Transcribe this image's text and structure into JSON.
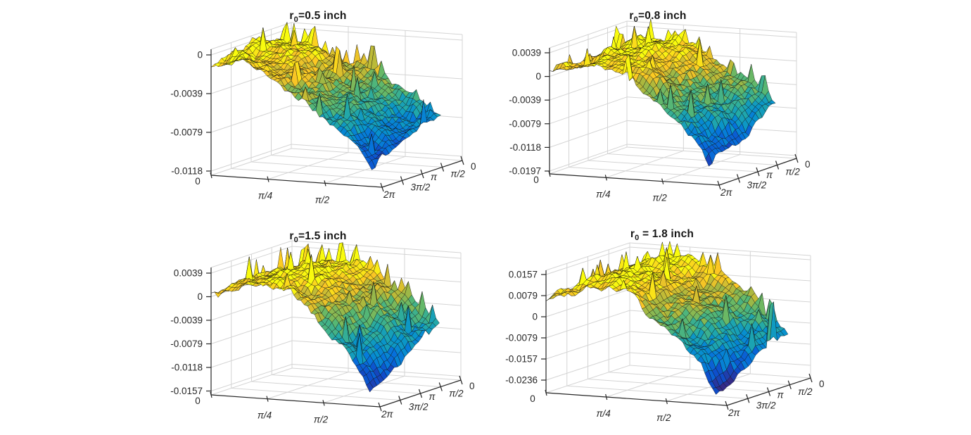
{
  "figure": {
    "background": "#ffffff",
    "colors": {
      "axis": "#262626",
      "grid": "#d4d4d4",
      "tick_text": "#262626",
      "mesh_edge": "#101010"
    },
    "colormap": "parula"
  },
  "chart_data": [
    {
      "type": "surface3d",
      "title": {
        "var": "r",
        "sub": "0",
        "rest": "=0.5 inch"
      },
      "x_ticks": [
        "0",
        "π/4",
        "π/2"
      ],
      "y_ticks": [
        "2π",
        "3π/2",
        "π",
        "π/2",
        "0"
      ],
      "z_ticks": [
        "0",
        "-0.0039",
        "-0.0079",
        "-0.0118"
      ],
      "x_range": [
        0,
        2.356
      ],
      "y_range": [
        0,
        6.283
      ],
      "z_lim": [
        -0.0123,
        0.0006
      ],
      "legend": "none",
      "grid": true,
      "surface": {
        "description": "rough parula mesh falling from z≈0 at left edge to z≈-0.011 at front-right corner",
        "base": 0.93,
        "slope": -0.15,
        "curve": 0.62,
        "v_tilt": 0.3,
        "bump": 0,
        "bump_u": 0.3,
        "bump_w": 0.2,
        "seed": 7,
        "right_edge_spike": false
      }
    },
    {
      "type": "surface3d",
      "title": {
        "var": "r",
        "sub": "0",
        "rest": "=0.8 inch"
      },
      "x_ticks": [
        "0",
        "π/4",
        "π/2"
      ],
      "y_ticks": [
        "2π",
        "3π/2",
        "π",
        "π/2",
        "0"
      ],
      "z_ticks": [
        "0.0039",
        "0",
        "-0.0039",
        "-0.0079",
        "-0.0118",
        "-0.0197"
      ],
      "x_range": [
        0,
        2.356
      ],
      "y_range": [
        0,
        6.283
      ],
      "z_lim": [
        -0.0197,
        0.0045
      ],
      "legend": "none",
      "grid": true,
      "surface": {
        "description": "yellow plateau near z≈0 then steep drop to z≈-0.015 at front-right",
        "base": 0.8,
        "slope": 0.62,
        "curve": 1.28,
        "v_tilt": 0.22,
        "bump": 0.05,
        "bump_u": 0.38,
        "bump_w": 0.22,
        "seed": 13,
        "right_edge_spike": false
      }
    },
    {
      "type": "surface3d",
      "title": {
        "var": "r",
        "sub": "0",
        "rest": "=1.5 inch"
      },
      "x_ticks": [
        "0",
        "π/4",
        "π/2"
      ],
      "y_ticks": [
        "2π",
        "3π/2",
        "π",
        "π/2",
        "0"
      ],
      "z_ticks": [
        "0.0039",
        "0",
        "-0.0039",
        "-0.0079",
        "-0.0118",
        "-0.0157"
      ],
      "x_range": [
        0,
        2.356
      ],
      "y_range": [
        0,
        6.283
      ],
      "z_lim": [
        -0.0157,
        0.0045
      ],
      "legend": "none",
      "grid": true,
      "surface": {
        "description": "broad band: slight rise above 0 then descent to z≈-0.014 at front-right, small hook at right tip",
        "base": 0.78,
        "slope": 0.66,
        "curve": 1.3,
        "v_tilt": 0.24,
        "bump": 0.05,
        "bump_u": 0.35,
        "bump_w": 0.24,
        "seed": 21,
        "right_edge_spike": false
      }
    },
    {
      "type": "surface3d",
      "title": {
        "var": "r",
        "sub": "0",
        "rest": " = 1.8 inch"
      },
      "x_ticks": [
        "0",
        "π/4",
        "π/2"
      ],
      "y_ticks": [
        "2π",
        "3π/2",
        "π",
        "π/2",
        "0"
      ],
      "z_ticks": [
        "0.0157",
        "0.0079",
        "0",
        "-0.0079",
        "-0.0157",
        "-0.0236"
      ],
      "x_range": [
        0,
        2.356
      ],
      "y_range": [
        0,
        6.283
      ],
      "z_lim": [
        -0.0236,
        0.0165
      ],
      "legend": "none",
      "grid": true,
      "surface": {
        "description": "orange-yellow dome near z≈0.01 dropping to deep blue trench z≈-0.022, thin spike at right edge",
        "base": 0.73,
        "slope": 0.75,
        "curve": 1.38,
        "v_tilt": 0.22,
        "bump": 0.08,
        "bump_u": 0.35,
        "bump_w": 0.25,
        "seed": 33,
        "right_edge_spike": true
      }
    }
  ]
}
